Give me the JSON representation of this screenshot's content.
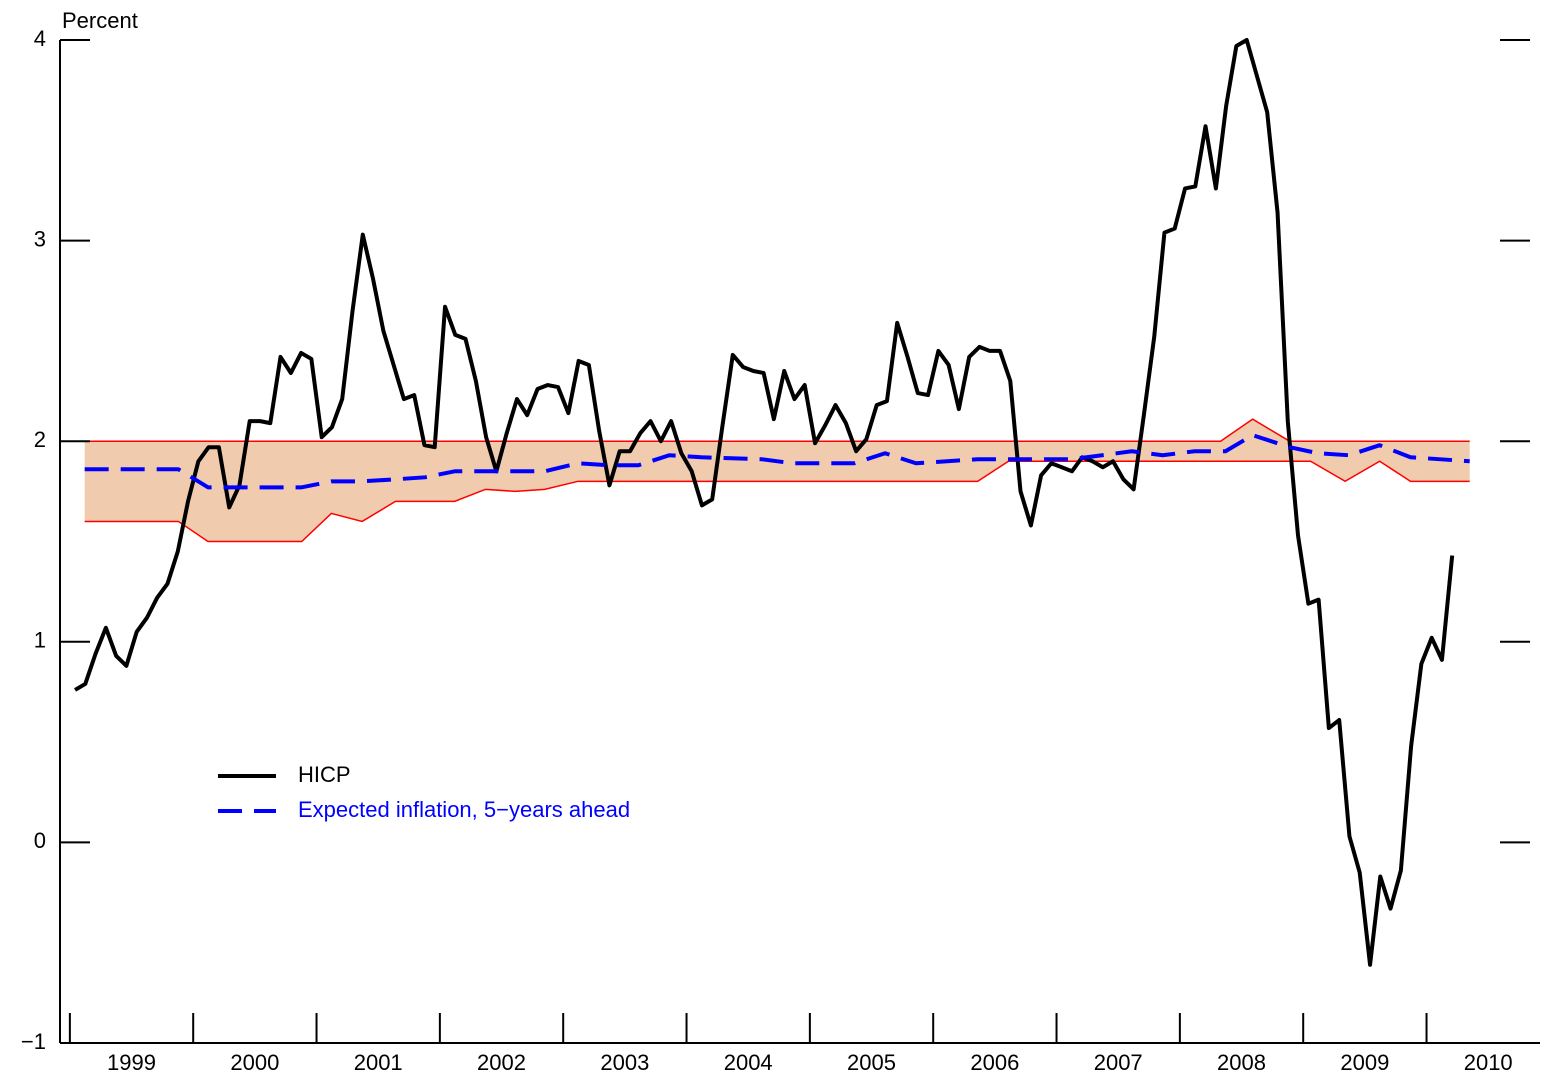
{
  "chart_data": {
    "type": "line",
    "y_label": "Percent",
    "xlim": [
      1998.92,
      2010.92
    ],
    "xticks": [
      1999,
      2000,
      2001,
      2002,
      2003,
      2004,
      2005,
      2006,
      2007,
      2008,
      2009,
      2010
    ],
    "ylim": [
      -1,
      4
    ],
    "yticks": [
      {
        "value": -1,
        "label": "−1"
      },
      0,
      1,
      2,
      3,
      4
    ],
    "legend": "lower left",
    "band": {
      "color": "#f0cbad",
      "edge_color": "#ff0000",
      "x": [
        1999.12,
        1999.88,
        2000.12,
        2000.88,
        2001.12,
        2001.37,
        2001.64,
        2002.12,
        2002.37,
        2002.61,
        2002.85,
        2003.12,
        2006.36,
        2006.61,
        2008.33,
        2008.59,
        2008.89,
        2009.06,
        2009.34,
        2009.62,
        2009.87,
        2010.35
      ],
      "upper": [
        2,
        2,
        2,
        2,
        2,
        2,
        2,
        2,
        2,
        2,
        2,
        2,
        2,
        2,
        2,
        2.11,
        2,
        2,
        2,
        2,
        2,
        2
      ],
      "lower": [
        1.6,
        1.6,
        1.5,
        1.5,
        1.64,
        1.6,
        1.7,
        1.7,
        1.76,
        1.75,
        1.76,
        1.8,
        1.8,
        1.9,
        1.9,
        1.9,
        1.9,
        1.9,
        1.8,
        1.9,
        1.8,
        1.8
      ]
    },
    "series": [
      {
        "name": "HICP",
        "color": "#000000",
        "dash": "solid",
        "x": [
          1999.042,
          1999.125,
          1999.208,
          1999.292,
          1999.375,
          1999.458,
          1999.542,
          1999.625,
          1999.708,
          1999.792,
          1999.875,
          1999.958,
          2000.042,
          2000.125,
          2000.208,
          2000.292,
          2000.375,
          2000.458,
          2000.542,
          2000.625,
          2000.708,
          2000.792,
          2000.875,
          2000.958,
          2001.042,
          2001.125,
          2001.208,
          2001.292,
          2001.375,
          2001.458,
          2001.542,
          2001.625,
          2001.708,
          2001.792,
          2001.875,
          2001.958,
          2002.042,
          2002.125,
          2002.208,
          2002.292,
          2002.375,
          2002.458,
          2002.542,
          2002.625,
          2002.708,
          2002.792,
          2002.875,
          2002.958,
          2003.042,
          2003.125,
          2003.208,
          2003.292,
          2003.375,
          2003.458,
          2003.542,
          2003.625,
          2003.708,
          2003.792,
          2003.875,
          2003.958,
          2004.042,
          2004.125,
          2004.208,
          2004.292,
          2004.375,
          2004.458,
          2004.542,
          2004.625,
          2004.708,
          2004.792,
          2004.875,
          2004.958,
          2005.042,
          2005.125,
          2005.208,
          2005.292,
          2005.375,
          2005.458,
          2005.542,
          2005.625,
          2005.708,
          2005.792,
          2005.875,
          2005.958,
          2006.042,
          2006.125,
          2006.208,
          2006.292,
          2006.375,
          2006.458,
          2006.542,
          2006.625,
          2006.708,
          2006.792,
          2006.875,
          2006.958,
          2007.042,
          2007.125,
          2007.208,
          2007.292,
          2007.375,
          2007.458,
          2007.542,
          2007.625,
          2007.708,
          2007.792,
          2007.875,
          2007.958,
          2008.042,
          2008.125,
          2008.208,
          2008.292,
          2008.375,
          2008.458,
          2008.542,
          2008.625,
          2008.708,
          2008.792,
          2008.875,
          2008.958,
          2009.042,
          2009.125,
          2009.208,
          2009.292,
          2009.375,
          2009.458,
          2009.542,
          2009.625,
          2009.708,
          2009.792,
          2009.875,
          2009.958,
          2010.042,
          2010.125,
          2010.208
        ],
        "values": [
          0.76,
          0.79,
          0.94,
          1.07,
          0.93,
          0.88,
          1.05,
          1.12,
          1.22,
          1.29,
          1.45,
          1.7,
          1.9,
          1.97,
          1.97,
          1.67,
          1.78,
          2.1,
          2.1,
          2.09,
          2.42,
          2.34,
          2.44,
          2.41,
          2.02,
          2.07,
          2.21,
          2.65,
          3.03,
          2.81,
          2.55,
          2.38,
          2.21,
          2.23,
          1.98,
          1.97,
          2.67,
          2.53,
          2.51,
          2.3,
          2.02,
          1.85,
          2.04,
          2.21,
          2.13,
          2.26,
          2.28,
          2.27,
          2.14,
          2.4,
          2.38,
          2.05,
          1.78,
          1.95,
          1.95,
          2.04,
          2.1,
          2.0,
          2.1,
          1.94,
          1.85,
          1.68,
          1.71,
          2.08,
          2.43,
          2.37,
          2.35,
          2.34,
          2.11,
          2.35,
          2.21,
          2.28,
          1.99,
          2.08,
          2.18,
          2.09,
          1.95,
          2.01,
          2.18,
          2.2,
          2.59,
          2.42,
          2.24,
          2.23,
          2.45,
          2.38,
          2.16,
          2.42,
          2.47,
          2.45,
          2.45,
          2.3,
          1.75,
          1.58,
          1.83,
          1.89,
          1.87,
          1.85,
          1.92,
          1.9,
          1.87,
          1.9,
          1.81,
          1.76,
          2.13,
          2.52,
          3.04,
          3.06,
          3.26,
          3.27,
          3.57,
          3.26,
          3.67,
          3.97,
          4.0,
          3.82,
          3.64,
          3.14,
          2.1,
          1.53,
          1.19,
          1.21,
          0.57,
          0.61,
          0.03,
          -0.15,
          -0.61,
          -0.17,
          -0.33,
          -0.14,
          0.48,
          0.89,
          1.02,
          0.91,
          1.43
        ]
      },
      {
        "name": "Expected inflation, 5−years ahead",
        "color": "#0000ff",
        "dash": "dashed",
        "x": [
          1999.12,
          1999.88,
          2000.12,
          2000.88,
          2001.12,
          2001.37,
          2001.64,
          2001.88,
          2002.12,
          2002.61,
          2002.85,
          2003.12,
          2003.37,
          2003.61,
          2003.86,
          2004.12,
          2004.61,
          2004.86,
          2005.36,
          2005.61,
          2005.86,
          2006.36,
          2006.61,
          2007.12,
          2007.37,
          2007.61,
          2007.86,
          2008.12,
          2008.37,
          2008.59,
          2008.89,
          2009.12,
          2009.37,
          2009.62,
          2009.87,
          2010.35
        ],
        "values": [
          1.86,
          1.86,
          1.77,
          1.77,
          1.8,
          1.8,
          1.81,
          1.82,
          1.85,
          1.85,
          1.85,
          1.89,
          1.88,
          1.88,
          1.93,
          1.92,
          1.91,
          1.89,
          1.89,
          1.94,
          1.89,
          1.91,
          1.91,
          1.91,
          1.93,
          1.95,
          1.93,
          1.95,
          1.95,
          2.03,
          1.97,
          1.94,
          1.93,
          1.98,
          1.92,
          1.9
        ]
      }
    ]
  }
}
